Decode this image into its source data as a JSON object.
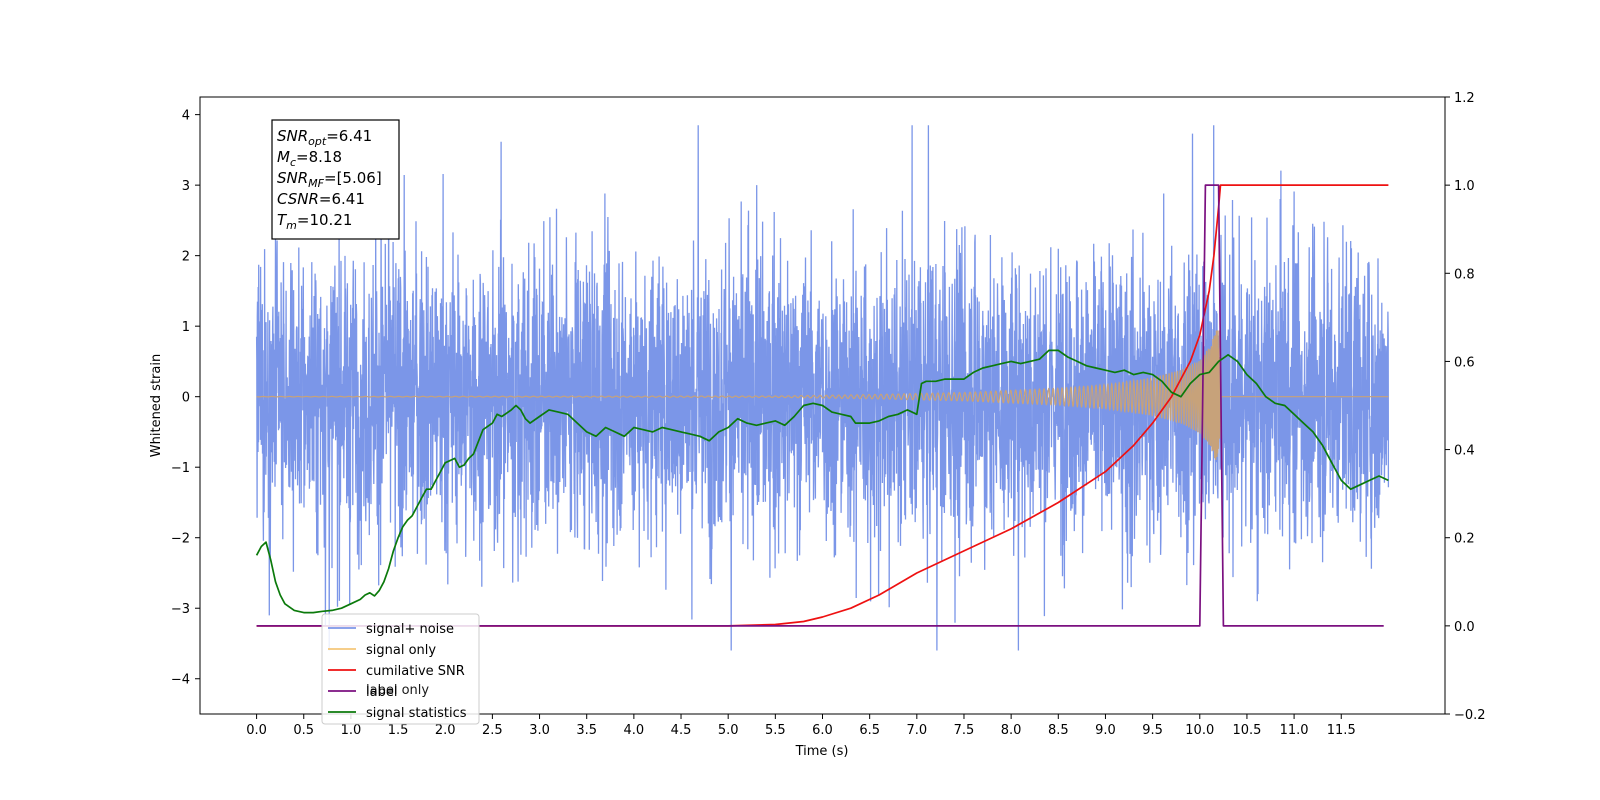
{
  "chart_data": {
    "type": "line",
    "xlabel": "Time (s)",
    "ylabel": "Whitened strain",
    "x_range": [
      -0.6,
      12.6
    ],
    "y_left_range": [
      -4.5,
      4.25
    ],
    "y_right_range": [
      -0.2,
      1.2
    ],
    "x_ticks": [
      "0.0",
      "0.5",
      "1.0",
      "1.5",
      "2.0",
      "2.5",
      "3.0",
      "3.5",
      "4.0",
      "4.5",
      "5.0",
      "5.5",
      "6.0",
      "6.5",
      "7.0",
      "7.5",
      "8.0",
      "8.5",
      "9.0",
      "9.5",
      "10.0",
      "10.5",
      "11.0",
      "11.5"
    ],
    "y_left_ticks": [
      -4,
      -3,
      -2,
      -1,
      0,
      1,
      2,
      3,
      4
    ],
    "y_right_ticks": [
      "−0.2",
      "0.0",
      "0.2",
      "0.4",
      "0.6",
      "0.8",
      "1.0",
      "1.2"
    ],
    "annotation": {
      "lines": [
        {
          "base": "SNR",
          "sub": "opt",
          "value": "=6.41"
        },
        {
          "base": "M",
          "sub": "c",
          "value": "=8.18"
        },
        {
          "base": "SNR",
          "sub": "MF",
          "value": "=[5.06]"
        },
        {
          "base": "CSNR",
          "sub": "",
          "value": "=6.41"
        },
        {
          "base": "T",
          "sub": "m",
          "value": "=10.21"
        }
      ]
    },
    "legend": {
      "placement": "lower-left",
      "entries": [
        "signal+ noise",
        "signal only",
        "cumilative SNR",
        "label",
        "signal statistics"
      ],
      "ghost_text": "label only"
    },
    "series": [
      {
        "name": "signal+ noise",
        "axis": "left",
        "color": "#7b96e8",
        "kind": "noise",
        "x_range": [
          0.0,
          12.0
        ],
        "std": 1.0
      },
      {
        "name": "signal only",
        "axis": "left",
        "color": "#c7a27a",
        "kind": "chirp",
        "merger_time": 10.21,
        "envelope": [
          [
            0.0,
            0.003
          ],
          [
            5.5,
            0.01
          ],
          [
            6.5,
            0.03
          ],
          [
            7.5,
            0.06
          ],
          [
            8.5,
            0.12
          ],
          [
            9.0,
            0.17
          ],
          [
            9.5,
            0.27
          ],
          [
            9.8,
            0.38
          ],
          [
            10.0,
            0.52
          ],
          [
            10.1,
            0.7
          ],
          [
            10.18,
            0.95
          ],
          [
            10.21,
            0.95
          ],
          [
            10.22,
            0.0
          ],
          [
            12.0,
            0.0
          ]
        ]
      },
      {
        "name": "cumilative SNR",
        "axis": "right",
        "color": "#ee1111",
        "points": [
          [
            0.0,
            0.0
          ],
          [
            5.0,
            0.0
          ],
          [
            5.5,
            0.003
          ],
          [
            5.8,
            0.01
          ],
          [
            6.0,
            0.02
          ],
          [
            6.3,
            0.04
          ],
          [
            6.6,
            0.07
          ],
          [
            7.0,
            0.12
          ],
          [
            7.5,
            0.17
          ],
          [
            8.0,
            0.22
          ],
          [
            8.5,
            0.28
          ],
          [
            9.0,
            0.35
          ],
          [
            9.3,
            0.41
          ],
          [
            9.5,
            0.46
          ],
          [
            9.7,
            0.52
          ],
          [
            9.9,
            0.6
          ],
          [
            10.0,
            0.66
          ],
          [
            10.1,
            0.76
          ],
          [
            10.15,
            0.84
          ],
          [
            10.2,
            0.95
          ],
          [
            10.22,
            1.0
          ],
          [
            12.0,
            1.0
          ]
        ]
      },
      {
        "name": "label",
        "axis": "right",
        "color": "#7b1080",
        "points": [
          [
            0.0,
            0.0
          ],
          [
            10.0,
            0.0
          ],
          [
            10.06,
            1.0
          ],
          [
            10.2,
            1.0
          ],
          [
            10.25,
            0.0
          ],
          [
            11.95,
            0.0
          ]
        ]
      },
      {
        "name": "signal statistics",
        "axis": "right",
        "color": "#0b7a0b",
        "points": [
          [
            0.0,
            0.16
          ],
          [
            0.05,
            0.18
          ],
          [
            0.1,
            0.19
          ],
          [
            0.15,
            0.15
          ],
          [
            0.2,
            0.1
          ],
          [
            0.25,
            0.07
          ],
          [
            0.3,
            0.05
          ],
          [
            0.4,
            0.035
          ],
          [
            0.5,
            0.03
          ],
          [
            0.6,
            0.03
          ],
          [
            0.7,
            0.033
          ],
          [
            0.8,
            0.035
          ],
          [
            0.9,
            0.04
          ],
          [
            1.0,
            0.05
          ],
          [
            1.1,
            0.06
          ],
          [
            1.15,
            0.07
          ],
          [
            1.2,
            0.075
          ],
          [
            1.25,
            0.068
          ],
          [
            1.3,
            0.08
          ],
          [
            1.35,
            0.1
          ],
          [
            1.4,
            0.13
          ],
          [
            1.45,
            0.17
          ],
          [
            1.5,
            0.2
          ],
          [
            1.55,
            0.225
          ],
          [
            1.6,
            0.24
          ],
          [
            1.65,
            0.25
          ],
          [
            1.7,
            0.27
          ],
          [
            1.75,
            0.29
          ],
          [
            1.8,
            0.31
          ],
          [
            1.85,
            0.31
          ],
          [
            1.9,
            0.33
          ],
          [
            1.95,
            0.35
          ],
          [
            2.0,
            0.37
          ],
          [
            2.1,
            0.38
          ],
          [
            2.15,
            0.36
          ],
          [
            2.2,
            0.365
          ],
          [
            2.25,
            0.38
          ],
          [
            2.3,
            0.39
          ],
          [
            2.4,
            0.445
          ],
          [
            2.5,
            0.46
          ],
          [
            2.55,
            0.48
          ],
          [
            2.6,
            0.475
          ],
          [
            2.7,
            0.49
          ],
          [
            2.75,
            0.5
          ],
          [
            2.8,
            0.49
          ],
          [
            2.85,
            0.47
          ],
          [
            2.9,
            0.46
          ],
          [
            3.0,
            0.475
          ],
          [
            3.1,
            0.49
          ],
          [
            3.2,
            0.485
          ],
          [
            3.3,
            0.48
          ],
          [
            3.4,
            0.46
          ],
          [
            3.5,
            0.44
          ],
          [
            3.6,
            0.43
          ],
          [
            3.7,
            0.45
          ],
          [
            3.8,
            0.44
          ],
          [
            3.9,
            0.43
          ],
          [
            4.0,
            0.45
          ],
          [
            4.1,
            0.445
          ],
          [
            4.2,
            0.44
          ],
          [
            4.3,
            0.45
          ],
          [
            4.4,
            0.445
          ],
          [
            4.5,
            0.44
          ],
          [
            4.6,
            0.435
          ],
          [
            4.7,
            0.43
          ],
          [
            4.8,
            0.42
          ],
          [
            4.9,
            0.44
          ],
          [
            5.0,
            0.45
          ],
          [
            5.1,
            0.47
          ],
          [
            5.2,
            0.46
          ],
          [
            5.3,
            0.455
          ],
          [
            5.4,
            0.46
          ],
          [
            5.5,
            0.465
          ],
          [
            5.6,
            0.455
          ],
          [
            5.7,
            0.475
          ],
          [
            5.8,
            0.5
          ],
          [
            5.9,
            0.505
          ],
          [
            6.0,
            0.5
          ],
          [
            6.1,
            0.485
          ],
          [
            6.2,
            0.48
          ],
          [
            6.3,
            0.475
          ],
          [
            6.35,
            0.46
          ],
          [
            6.4,
            0.46
          ],
          [
            6.5,
            0.46
          ],
          [
            6.6,
            0.465
          ],
          [
            6.7,
            0.475
          ],
          [
            6.8,
            0.48
          ],
          [
            6.9,
            0.49
          ],
          [
            7.0,
            0.48
          ],
          [
            7.05,
            0.55
          ],
          [
            7.1,
            0.555
          ],
          [
            7.2,
            0.555
          ],
          [
            7.3,
            0.56
          ],
          [
            7.4,
            0.56
          ],
          [
            7.5,
            0.56
          ],
          [
            7.6,
            0.575
          ],
          [
            7.7,
            0.585
          ],
          [
            7.8,
            0.59
          ],
          [
            7.9,
            0.595
          ],
          [
            8.0,
            0.6
          ],
          [
            8.1,
            0.595
          ],
          [
            8.2,
            0.6
          ],
          [
            8.3,
            0.605
          ],
          [
            8.4,
            0.625
          ],
          [
            8.5,
            0.625
          ],
          [
            8.6,
            0.61
          ],
          [
            8.7,
            0.6
          ],
          [
            8.8,
            0.59
          ],
          [
            8.9,
            0.585
          ],
          [
            9.0,
            0.58
          ],
          [
            9.1,
            0.575
          ],
          [
            9.2,
            0.58
          ],
          [
            9.3,
            0.57
          ],
          [
            9.4,
            0.575
          ],
          [
            9.5,
            0.57
          ],
          [
            9.6,
            0.555
          ],
          [
            9.7,
            0.53
          ],
          [
            9.8,
            0.52
          ],
          [
            9.9,
            0.55
          ],
          [
            10.0,
            0.57
          ],
          [
            10.1,
            0.575
          ],
          [
            10.2,
            0.6
          ],
          [
            10.3,
            0.615
          ],
          [
            10.4,
            0.6
          ],
          [
            10.5,
            0.57
          ],
          [
            10.6,
            0.55
          ],
          [
            10.7,
            0.52
          ],
          [
            10.8,
            0.505
          ],
          [
            10.9,
            0.5
          ],
          [
            11.0,
            0.48
          ],
          [
            11.1,
            0.46
          ],
          [
            11.2,
            0.44
          ],
          [
            11.3,
            0.41
          ],
          [
            11.4,
            0.37
          ],
          [
            11.5,
            0.33
          ],
          [
            11.6,
            0.31
          ],
          [
            11.7,
            0.32
          ],
          [
            11.8,
            0.33
          ],
          [
            11.9,
            0.34
          ],
          [
            12.0,
            0.33
          ]
        ]
      }
    ]
  }
}
